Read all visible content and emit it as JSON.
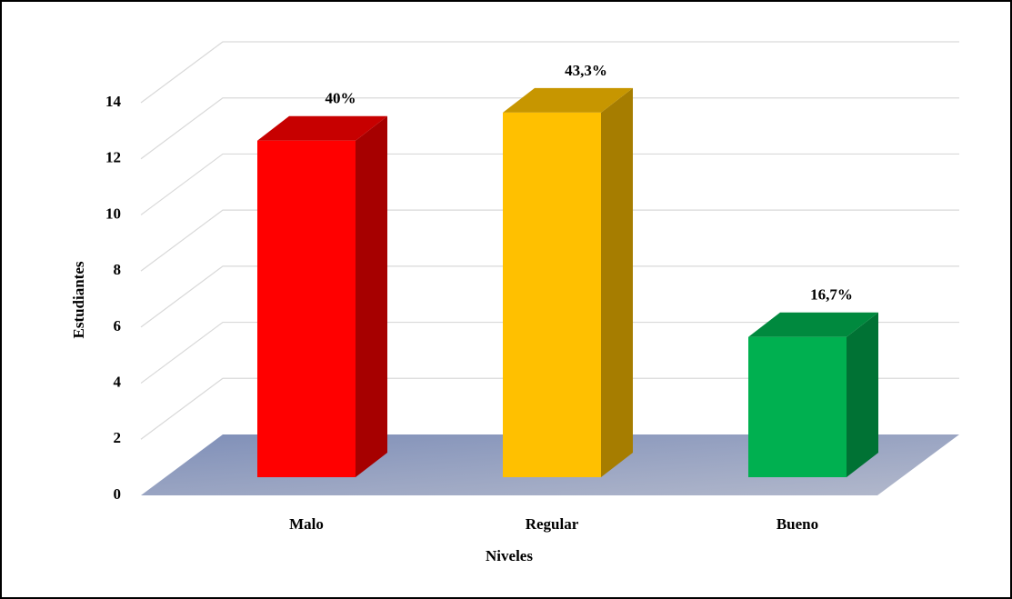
{
  "chart_data": {
    "type": "bar3d",
    "categories": [
      "Malo",
      "Regular",
      "Bueno"
    ],
    "values": [
      12,
      13,
      5
    ],
    "data_labels": [
      "40%",
      "43,3%",
      "16,7%"
    ],
    "colors": [
      "#ff0000",
      "#ffc000",
      "#00b050"
    ],
    "xlabel": "Niveles",
    "ylabel": "Estudiantes",
    "ylim": [
      0,
      14
    ],
    "yticks": [
      0,
      2,
      4,
      6,
      8,
      10,
      12,
      14
    ],
    "grid": true
  }
}
